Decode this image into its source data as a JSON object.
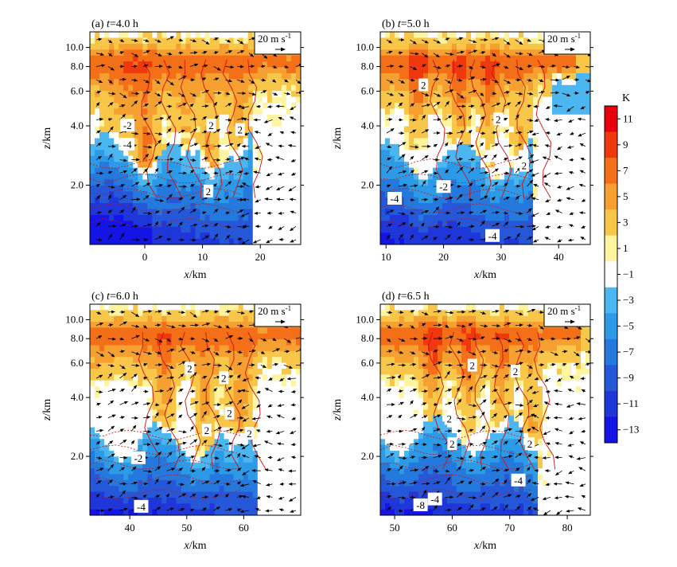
{
  "chart_data": {
    "type": "heatmap",
    "colorbar": {
      "unit": "K",
      "levels": [
        11,
        9,
        7,
        5,
        3,
        1,
        -1,
        -3,
        -5,
        -7,
        -9,
        -11,
        -13
      ],
      "colors": [
        "#e8000e",
        "#f0380e",
        "#f36f18",
        "#f5a030",
        "#f8c74a",
        "#fff5a0",
        "#ffffff",
        "#4bb6f0",
        "#2c9ae6",
        "#2679dc",
        "#2558d8",
        "#1f36d9",
        "#1414e6"
      ]
    },
    "vector_key": {
      "label": "20 m s",
      "exponent": "-1",
      "speed": 20
    },
    "contour_labels_note": "solid red positive, dashed red negative",
    "panels": [
      {
        "id": "a",
        "label": "(a)",
        "time_prefix": "t",
        "time_value": "=4.0 h",
        "xlabel": "x",
        "xunit": "/km",
        "ylabel": "z",
        "yunit": "/km",
        "xlim": [
          -9.5,
          27
        ],
        "xticks": [
          0,
          10,
          20
        ],
        "yticks": [
          2.0,
          4.0,
          6.0,
          8.0,
          10.0
        ],
        "ylim": [
          1.0,
          12.0
        ],
        "yscale": "log",
        "contour_labels": [
          {
            "text": "-2",
            "x": -3,
            "z": 4.0
          },
          {
            "text": "-4",
            "x": -3,
            "z": 3.2
          },
          {
            "text": "2",
            "x": 11.5,
            "z": 4.0
          },
          {
            "text": "2",
            "x": 16.5,
            "z": 3.8
          },
          {
            "text": "2",
            "x": 11,
            "z": 1.85
          }
        ]
      },
      {
        "id": "b",
        "label": "(b)",
        "time_prefix": "t",
        "time_value": "=5.0 h",
        "xlabel": "x",
        "xunit": "/km",
        "ylabel": "z",
        "yunit": "/km",
        "xlim": [
          9,
          45.5
        ],
        "xticks": [
          10,
          20,
          30,
          40
        ],
        "yticks": [
          2.0,
          4.0,
          6.0,
          8.0,
          10.0
        ],
        "ylim": [
          1.0,
          12.0
        ],
        "yscale": "log",
        "contour_labels": [
          {
            "text": "2",
            "x": 16.5,
            "z": 6.4
          },
          {
            "text": "2",
            "x": 29.5,
            "z": 4.3
          },
          {
            "text": "2",
            "x": 34,
            "z": 2.5
          },
          {
            "text": "-2",
            "x": 20,
            "z": 1.95
          },
          {
            "text": "-4",
            "x": 11.5,
            "z": 1.7
          },
          {
            "text": "-4",
            "x": 28.5,
            "z": 1.1
          }
        ]
      },
      {
        "id": "c",
        "label": "(c)",
        "time_prefix": "t",
        "time_value": "=6.0 h",
        "xlabel": "x",
        "xunit": "/km",
        "ylabel": "z",
        "yunit": "/km",
        "xlim": [
          33,
          70
        ],
        "xticks": [
          40,
          50,
          60
        ],
        "yticks": [
          2.0,
          4.0,
          6.0,
          8.0,
          10.0
        ],
        "ylim": [
          1.0,
          12.0
        ],
        "yscale": "log",
        "contour_labels": [
          {
            "text": "2",
            "x": 50.5,
            "z": 5.6
          },
          {
            "text": "2",
            "x": 56.5,
            "z": 5.0
          },
          {
            "text": "2",
            "x": 57.5,
            "z": 3.3
          },
          {
            "text": "2",
            "x": 53.5,
            "z": 2.7
          },
          {
            "text": "2",
            "x": 61,
            "z": 2.6
          },
          {
            "text": "-2",
            "x": 41.5,
            "z": 1.95
          },
          {
            "text": "-4",
            "x": 42,
            "z": 1.1
          }
        ]
      },
      {
        "id": "d",
        "label": "(d)",
        "time_prefix": "t",
        "time_value": "=6.5 h",
        "xlabel": "x",
        "xunit": "/km",
        "ylabel": "z",
        "yunit": "/km",
        "xlim": [
          47.5,
          84
        ],
        "xticks": [
          50,
          60,
          70,
          80
        ],
        "yticks": [
          2.0,
          4.0,
          6.0,
          8.0,
          10.0
        ],
        "ylim": [
          1.0,
          12.0
        ],
        "yscale": "log",
        "contour_labels": [
          {
            "text": "2",
            "x": 63.5,
            "z": 5.8
          },
          {
            "text": "2",
            "x": 71,
            "z": 5.4
          },
          {
            "text": "2",
            "x": 59.5,
            "z": 3.1
          },
          {
            "text": "2",
            "x": 60,
            "z": 2.3
          },
          {
            "text": "2",
            "x": 73.5,
            "z": 2.3
          },
          {
            "text": "-4",
            "x": 71.5,
            "z": 1.5
          },
          {
            "text": "-4",
            "x": 57,
            "z": 1.2
          },
          {
            "text": "-8",
            "x": 54.5,
            "z": 1.12
          }
        ]
      }
    ]
  }
}
